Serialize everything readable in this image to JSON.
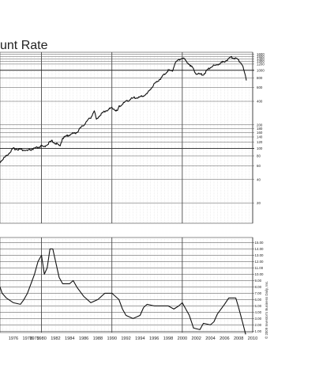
{
  "chart_data": [
    {
      "type": "line",
      "title": "unt Rate",
      "yscale": "log",
      "ylim": [
        11,
        1700
      ],
      "xlim": [
        1974.1,
        2010.0
      ],
      "y_ticks": [
        1600,
        1500,
        1400,
        1300,
        1200,
        1000,
        800,
        600,
        400,
        200,
        180,
        160,
        140,
        120,
        100,
        80,
        60,
        40,
        20
      ],
      "major_y": [
        1000,
        100
      ],
      "grid": true,
      "series": [
        {
          "points": [
            [
              1974.1,
              67
            ],
            [
              1975,
              80
            ],
            [
              1976,
              99
            ],
            [
              1977,
              97
            ],
            [
              1978,
              93
            ],
            [
              1978.6,
              97
            ],
            [
              1979,
              99
            ],
            [
              1980,
              107
            ],
            [
              1980.3,
              103
            ],
            [
              1980.9,
              115
            ],
            [
              1981.5,
              124
            ],
            [
              1982.6,
              107
            ],
            [
              1983,
              135
            ],
            [
              1984,
              150
            ],
            [
              1985,
              160
            ],
            [
              1986,
              200
            ],
            [
              1987,
              250
            ],
            [
              1987.5,
              300
            ],
            [
              1987.8,
              230
            ],
            [
              1988,
              250
            ],
            [
              1989,
              300
            ],
            [
              1990,
              330
            ],
            [
              1990.8,
              300
            ],
            [
              1991,
              340
            ],
            [
              1992,
              400
            ],
            [
              1993,
              440
            ],
            [
              1994,
              450
            ],
            [
              1995,
              500
            ],
            [
              1996,
              660
            ],
            [
              1997,
              800
            ],
            [
              1998,
              1000
            ],
            [
              1998.6,
              980
            ],
            [
              1999,
              1250
            ],
            [
              2000,
              1450
            ],
            [
              2001,
              1200
            ],
            [
              2002,
              900
            ],
            [
              2003,
              880
            ],
            [
              2004,
              1100
            ],
            [
              2005,
              1180
            ],
            [
              2006,
              1300
            ],
            [
              2007,
              1470
            ],
            [
              2007.8,
              1400
            ],
            [
              2008.5,
              1200
            ],
            [
              2008.9,
              880
            ],
            [
              2009.1,
              760
            ]
          ]
        }
      ]
    },
    {
      "type": "line",
      "ylim": [
        0.8,
        15.8
      ],
      "xlim": [
        1974.1,
        2010.0
      ],
      "y_ticks": [
        "15.00",
        "14.00",
        "13.00",
        "12.00",
        "11.00",
        "10.00",
        "9.00",
        "8.00",
        "7.00",
        "6.00",
        "5.00",
        "4.00",
        "3.00",
        "2.00",
        "1.00"
      ],
      "x_ticks": [
        "1976",
        "1978",
        "1979",
        "1980",
        "1982",
        "1984",
        "1986",
        "1988",
        "1990",
        "1992",
        "1994",
        "1996",
        "1998",
        "2000",
        "2002",
        "2004",
        "2006",
        "2008",
        "2010"
      ],
      "grid": true,
      "series": [
        {
          "points": [
            [
              1974.1,
              8
            ],
            [
              1974.4,
              7
            ],
            [
              1975,
              6.25
            ],
            [
              1976,
              5.5
            ],
            [
              1977,
              5.25
            ],
            [
              1977.5,
              6
            ],
            [
              1978,
              7
            ],
            [
              1978.5,
              8.5
            ],
            [
              1979,
              10
            ],
            [
              1979.5,
              12
            ],
            [
              1980,
              13
            ],
            [
              1980.4,
              10
            ],
            [
              1980.8,
              11
            ],
            [
              1981.2,
              14
            ],
            [
              1981.6,
              14
            ],
            [
              1982,
              12
            ],
            [
              1982.5,
              9.5
            ],
            [
              1983,
              8.5
            ],
            [
              1984,
              8.5
            ],
            [
              1984.5,
              9
            ],
            [
              1985,
              8
            ],
            [
              1986,
              6.5
            ],
            [
              1987,
              5.5
            ],
            [
              1988,
              6
            ],
            [
              1989,
              7
            ],
            [
              1990,
              7
            ],
            [
              1991,
              6
            ],
            [
              1991.5,
              4.5
            ],
            [
              1992,
              3.5
            ],
            [
              1993,
              3
            ],
            [
              1994,
              3.5
            ],
            [
              1994.5,
              4.75
            ],
            [
              1995,
              5.25
            ],
            [
              1996,
              5
            ],
            [
              1998,
              5
            ],
            [
              1998.8,
              4.5
            ],
            [
              1999.5,
              5
            ],
            [
              2000,
              5.5
            ],
            [
              2001,
              3.5
            ],
            [
              2001.6,
              1.5
            ],
            [
              2002.5,
              1.25
            ],
            [
              2003,
              2.25
            ],
            [
              2004,
              2
            ],
            [
              2004.5,
              2.5
            ],
            [
              2005,
              3.75
            ],
            [
              2006,
              5.25
            ],
            [
              2006.6,
              6.25
            ],
            [
              2007.6,
              6.25
            ],
            [
              2008,
              4.75
            ],
            [
              2008.6,
              2.25
            ],
            [
              2009,
              0.5
            ]
          ]
        }
      ]
    }
  ],
  "credit": "© 2009 Investor's Business Daily, Inc."
}
